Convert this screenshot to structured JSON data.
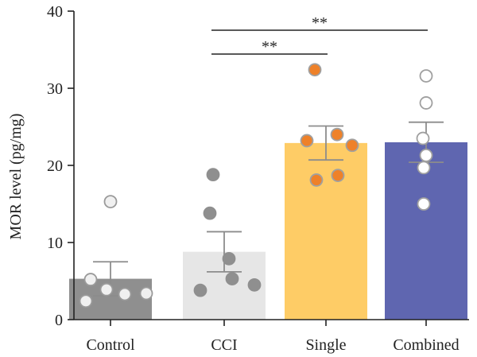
{
  "chart_data": {
    "type": "bar",
    "ylabel": "MOR level (pg/mg)",
    "ylim": [
      0,
      40
    ],
    "yticks": [
      0,
      10,
      20,
      30,
      40
    ],
    "categories": [
      "Control",
      "CCI",
      "Single",
      "Combined"
    ],
    "values": [
      5.3,
      8.8,
      22.9,
      23.0
    ],
    "sem": [
      2.2,
      2.6,
      2.2,
      2.6
    ],
    "bar_colors": [
      "#8f8f8f",
      "#e6e6e6",
      "#fecc66",
      "#5f66b0"
    ],
    "points": [
      [
        15.3,
        5.2,
        3.9,
        3.3,
        3.4,
        2.4
      ],
      [
        18.8,
        13.8,
        7.9,
        5.3,
        4.5,
        3.8
      ],
      [
        32.4,
        24.0,
        23.2,
        22.6,
        18.7,
        18.1
      ],
      [
        31.6,
        28.1,
        23.5,
        21.3,
        19.7,
        15.0
      ]
    ],
    "point_fill": [
      "#f0f0f0",
      "#8f8f8f",
      "#ee8129",
      "#ffffff"
    ],
    "point_stroke": [
      "#9a9a9a",
      "#8f8f8f",
      "#a0a0a0",
      "#a0a0a0"
    ],
    "significance": [
      {
        "from": "CCI",
        "to": "Single",
        "label": "**"
      },
      {
        "from": "CCI",
        "to": "Combined",
        "label": "**"
      }
    ]
  }
}
